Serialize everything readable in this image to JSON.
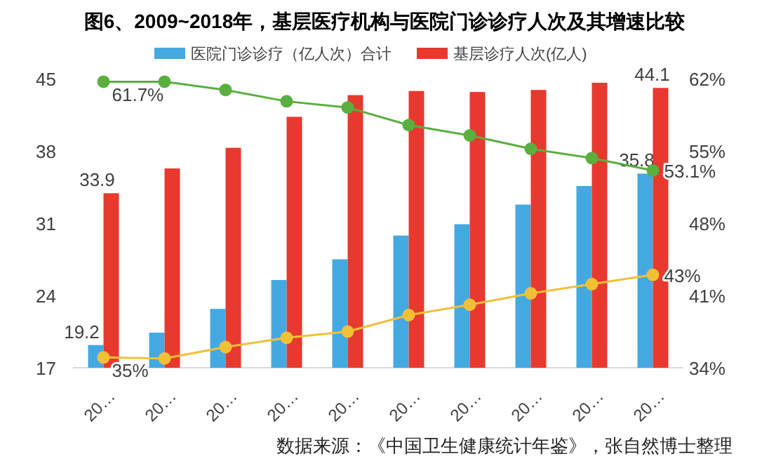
{
  "chart_data": {
    "type": "bar",
    "title": "图6、2009~2018年，基层医疗机构与医院门诊诊疗人次及其增速比较",
    "categories": [
      "20…",
      "20…",
      "20…",
      "20…",
      "20…",
      "20…",
      "20…",
      "20…",
      "20…",
      "20…"
    ],
    "series": [
      {
        "name": "医院门诊诊疗（亿人次）合计",
        "color": "#45a9e1",
        "values": [
          19.2,
          20.4,
          22.7,
          25.5,
          27.5,
          29.8,
          30.9,
          32.8,
          34.6,
          35.8
        ],
        "value_labels": [
          "19.2",
          null,
          null,
          null,
          null,
          null,
          null,
          null,
          null,
          "35.8"
        ]
      },
      {
        "name": "基层诊疗人次(亿人)",
        "color": "#e8392f",
        "values": [
          33.9,
          36.3,
          38.3,
          41.3,
          43.4,
          43.8,
          43.7,
          43.9,
          44.6,
          44.1
        ],
        "value_labels": [
          "33.9",
          null,
          null,
          null,
          null,
          null,
          null,
          null,
          null,
          "44.1"
        ]
      },
      {
        "type": "line",
        "axis": "y2",
        "color": "#5aaf3f",
        "marker": "circle",
        "values": [
          61.7,
          61.7,
          60.9,
          59.8,
          59.2,
          57.5,
          56.5,
          55.2,
          54.3,
          53.1
        ],
        "value_labels": [
          "61.7%",
          null,
          null,
          null,
          null,
          null,
          null,
          null,
          null,
          "53.1%"
        ]
      },
      {
        "type": "line",
        "axis": "y2",
        "color": "#f2c037",
        "marker": "circle",
        "values": [
          35,
          34.9,
          36.0,
          36.9,
          37.5,
          39.1,
          40.1,
          41.2,
          42.1,
          43
        ],
        "value_labels": [
          "35%",
          null,
          null,
          null,
          null,
          null,
          null,
          null,
          null,
          "43%"
        ]
      }
    ],
    "ylim": [
      17,
      45
    ],
    "yticks": [
      17,
      24,
      31,
      38,
      45
    ],
    "y2lim": [
      34,
      62
    ],
    "y2ticks": [
      {
        "value": 34,
        "label": "34%"
      },
      {
        "value": 41,
        "label": "41%"
      },
      {
        "value": 48,
        "label": "48%"
      },
      {
        "value": 55,
        "label": "55%"
      },
      {
        "value": 62,
        "label": "62%"
      }
    ],
    "grid": false,
    "legend": "top",
    "annotations": [
      "数据来源：《中国卫生健康统计年鉴》，张自然博士整理"
    ]
  }
}
